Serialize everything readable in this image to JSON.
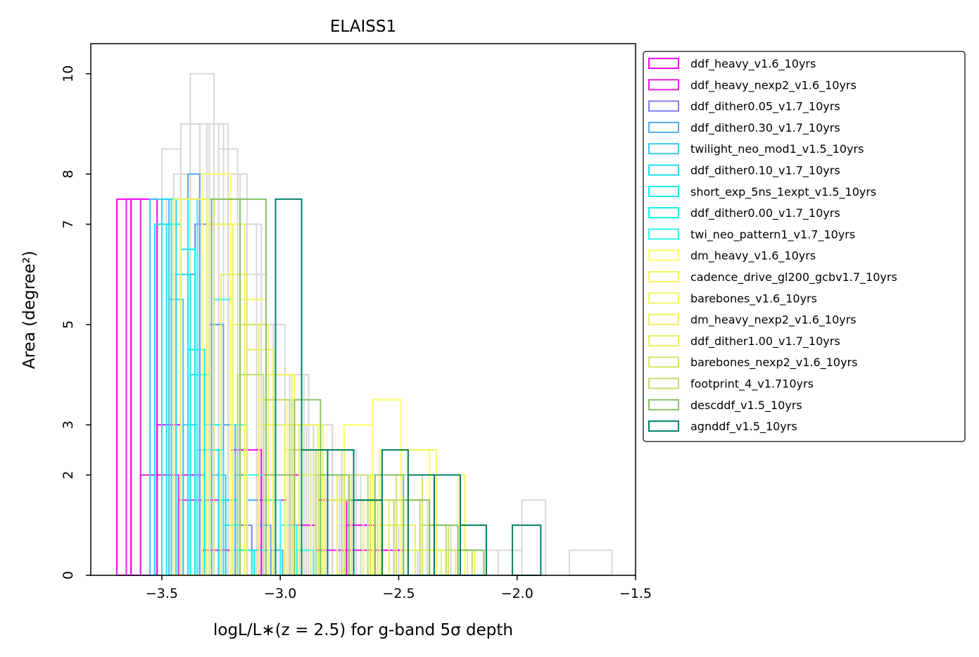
{
  "chart_data": {
    "type": "bar",
    "subtype": "step-histogram",
    "title": "ELAISS1",
    "xlabel": "logL/L∗(z = 2.5) for g-band 5σ depth",
    "ylabel": "Area (degree²)",
    "xlim": [
      -3.8,
      -1.5
    ],
    "ylim": [
      0,
      10.6
    ],
    "xticks": [
      -3.5,
      -3.0,
      -2.5,
      -2.0,
      -1.5
    ],
    "xtick_labels": [
      "−3.5",
      "−3.0",
      "−2.5",
      "−2.0",
      "−1.5"
    ],
    "yticks": [
      0,
      2,
      3,
      5,
      7,
      8,
      10
    ],
    "ytick_labels": [
      "0",
      "2",
      "3",
      "5",
      "7",
      "8",
      "10"
    ],
    "legend_position": "outside right, upper",
    "background_series_color": "#d9d9d9",
    "background_series": [
      {
        "edges": [
          -3.48,
          -3.38,
          -3.28,
          -3.18,
          -3.08,
          -2.98,
          -2.88,
          -2.78,
          -2.68,
          -2.58,
          -2.48,
          -2.38,
          -2.28,
          -2.18,
          -2.08,
          -1.98,
          -1.88,
          -1.78,
          -1.6
        ],
        "values": [
          7.5,
          10,
          8,
          7,
          5,
          4,
          3,
          2.5,
          2,
          2,
          1.5,
          1,
          0.5,
          0.5,
          0.5,
          1.5,
          0,
          0.5
        ]
      },
      {
        "edges": [
          -3.5,
          -3.42,
          -3.34,
          -3.26,
          -3.18,
          -3.1,
          -3.02,
          -2.94,
          -2.86,
          -2.78,
          -2.7,
          -2.62,
          -2.54,
          -2.46,
          -2.38,
          -2.3
        ],
        "values": [
          8.5,
          9,
          9,
          8.5,
          7,
          5,
          4,
          3,
          3,
          2,
          2,
          1.5,
          1,
          0.5,
          0.5
        ]
      },
      {
        "edges": [
          -3.52,
          -3.45,
          -3.38,
          -3.31,
          -3.24,
          -3.17,
          -3.1,
          -3.03,
          -2.96,
          -2.89,
          -2.82,
          -2.75,
          -2.68,
          -2.61,
          -2.54
        ],
        "values": [
          7,
          8,
          9,
          9,
          8,
          6,
          5,
          4,
          3,
          2.5,
          2,
          1,
          1,
          0.5
        ]
      },
      {
        "edges": [
          -3.46,
          -3.38,
          -3.3,
          -3.22,
          -3.14,
          -3.06,
          -2.98,
          -2.9,
          -2.82,
          -2.74,
          -2.66,
          -2.58,
          -2.5,
          -2.42,
          -2.34
        ],
        "values": [
          6,
          8,
          9,
          8,
          6,
          5,
          4,
          3,
          2.5,
          2,
          1.5,
          1,
          0.5,
          0.5
        ]
      }
    ],
    "series": [
      {
        "name": "ddf_heavy_v1.6_10yrs",
        "color": "#ff00ff",
        "edges": [
          -3.69,
          -3.63,
          -3.52,
          -3.42,
          -3.32,
          -3.2,
          -3.08,
          -2.96,
          -2.84,
          -2.72,
          -2.6,
          -2.48
        ],
        "values": [
          7.5,
          7.5,
          3,
          2,
          1.5,
          2.5,
          2,
          2,
          1.5,
          1,
          0.5
        ]
      },
      {
        "name": "ddf_heavy_nexp2_v1.6_10yrs",
        "color": "#e61ee6",
        "edges": [
          -3.65,
          -3.59,
          -3.53,
          -3.43,
          -3.33,
          -3.21,
          -3.09,
          -2.97,
          -2.85,
          -2.73,
          -2.61
        ],
        "values": [
          7.5,
          2,
          2,
          1.5,
          0.5,
          2.5,
          1.5,
          1,
          0.5,
          0.5
        ]
      },
      {
        "name": "ddf_dither0.05_v1.7_10yrs",
        "color": "#7f7fee",
        "edges": [
          -3.42,
          -3.36,
          -3.3,
          -3.24,
          -3.18,
          -3.12
        ],
        "values": [
          6,
          7,
          5,
          3,
          1
        ]
      },
      {
        "name": "ddf_dither0.30_v1.7_10yrs",
        "color": "#55aaee",
        "edges": [
          -3.39,
          -3.34,
          -3.29,
          -3.24,
          -3.19,
          -3.14,
          -3.09,
          -3.04,
          -2.99
        ],
        "values": [
          8,
          7.5,
          5,
          3,
          2,
          1.5,
          1,
          0.5
        ]
      },
      {
        "name": "twilight_neo_mod1_v1.5_10yrs",
        "color": "#3bc8ee",
        "edges": [
          -3.55,
          -3.47,
          -3.41,
          -3.35,
          -3.29,
          -3.23,
          -3.17,
          -3.11,
          -3.05
        ],
        "values": [
          7.5,
          5.5,
          3,
          2.5,
          2,
          1,
          0.5,
          0.5
        ]
      },
      {
        "name": "ddf_dither0.10_v1.7_10yrs",
        "color": "#22dcee",
        "edges": [
          -3.5,
          -3.44,
          -3.38,
          -3.32,
          -3.26,
          -3.2,
          -3.14
        ],
        "values": [
          7.5,
          6,
          4,
          2.5,
          1.5,
          0.5
        ]
      },
      {
        "name": "short_exp_5ns_1expt_v1.5_10yrs",
        "color": "#11e8ee",
        "edges": [
          -3.53,
          -3.46,
          -3.39,
          -3.32,
          -3.25,
          -3.18,
          -3.11
        ],
        "values": [
          7,
          7.5,
          4.5,
          3,
          1.5,
          0.5
        ]
      },
      {
        "name": "ddf_dither0.00_v1.7_10yrs",
        "color": "#11f0f0",
        "edges": [
          -3.48,
          -3.42,
          -3.36,
          -3.3,
          -3.24,
          -3.18,
          -3.12
        ],
        "values": [
          7,
          6.5,
          4,
          2.5,
          1,
          0.5
        ]
      },
      {
        "name": "twi_neo_pattern1_v1.7_10yrs",
        "color": "#33f8ee",
        "edges": [
          -3.35,
          -3.28,
          -3.21,
          -3.14,
          -3.07,
          -3,
          -2.93,
          -2.86
        ],
        "values": [
          7.5,
          5.5,
          3,
          2,
          1.5,
          1,
          0.5
        ]
      },
      {
        "name": "dm_heavy_v1.6_10yrs",
        "color": "#ffff66",
        "edges": [
          -3.33,
          -3.21,
          -3.09,
          -2.97,
          -2.85,
          -2.73,
          -2.61,
          -2.49,
          -2.37,
          -2.25,
          -2.13
        ],
        "values": [
          8,
          5,
          3.5,
          2.5,
          2.5,
          3,
          3.5,
          2.5,
          2,
          1,
          0.5
        ]
      },
      {
        "name": "cadence_drive_gl200_gcbv1.7_10yrs",
        "color": "#f5f560",
        "edges": [
          -3.45,
          -3.3,
          -3.15,
          -3.05,
          -2.94,
          -2.82,
          -2.7,
          -2.58,
          -2.46,
          -2.34,
          -2.22
        ],
        "values": [
          7.5,
          7,
          5,
          4,
          3,
          2,
          1.5,
          2.5,
          2.5,
          2,
          1
        ]
      },
      {
        "name": "barebones_v1.6_10yrs",
        "color": "#f2f566",
        "edges": [
          -3.28,
          -3.17,
          -3.06,
          -2.95,
          -2.84,
          -2.73,
          -2.62,
          -2.51,
          -2.4,
          -2.29,
          -2.18
        ],
        "values": [
          7.5,
          5.5,
          4,
          3,
          2.5,
          2,
          1.5,
          1.5,
          1,
          0.5
        ]
      },
      {
        "name": "dm_heavy_nexp2_v1.6_10yrs",
        "color": "#eef262",
        "edges": [
          -3.42,
          -3.31,
          -3.2,
          -3.09,
          -2.98,
          -2.87,
          -2.76,
          -2.65,
          -2.54,
          -2.43,
          -2.32,
          -2.21
        ],
        "values": [
          7.5,
          7,
          5,
          3,
          2.5,
          2,
          1.5,
          1.5,
          1,
          0.5,
          0.5
        ]
      },
      {
        "name": "ddf_dither1.00_v1.7_10yrs",
        "color": "#e8ee66",
        "edges": [
          -3.25,
          -3.14,
          -3.03,
          -2.92,
          -2.81,
          -2.7,
          -2.59,
          -2.48,
          -2.37,
          -2.26
        ],
        "values": [
          6,
          4.5,
          3,
          2,
          1.5,
          1.5,
          1,
          0.5,
          0.5
        ]
      },
      {
        "name": "barebones_nexp2_v1.6_10yrs",
        "color": "#d8e46c",
        "edges": [
          -3.28,
          -3.17,
          -3.06,
          -2.95,
          -2.84,
          -2.73,
          -2.62,
          -2.51,
          -2.4,
          -2.29
        ],
        "values": [
          7.5,
          5,
          3.5,
          2.5,
          2,
          1.5,
          1.5,
          2,
          1,
          0.5
        ]
      },
      {
        "name": "footprint_4_v1.710yrs",
        "color": "#c2dc72",
        "edges": [
          -3.18,
          -3.07,
          -2.96,
          -2.85,
          -2.74,
          -2.63,
          -2.52,
          -2.41,
          -2.3,
          -2.19
        ],
        "values": [
          4,
          3.5,
          2.5,
          2,
          2,
          1.5,
          1.5,
          1,
          0.5
        ]
      },
      {
        "name": "descddf_v1.5_10yrs",
        "color": "#88c068",
        "edges": [
          -3.29,
          -3.17,
          -3.06,
          -2.94,
          -2.83,
          -2.71,
          -2.6,
          -2.48,
          -2.37,
          -2.25,
          -2.14
        ],
        "values": [
          7.5,
          7.5,
          2,
          3.5,
          2,
          1.5,
          2,
          1.5,
          1,
          0.5
        ]
      },
      {
        "name": "agnddf_v1.5_10yrs",
        "color": "#008064",
        "edges": [
          -3.02,
          -2.91,
          -2.8,
          -2.69,
          -2.57,
          -2.46,
          -2.35,
          -2.24,
          -2.13,
          -2.02,
          -1.9
        ],
        "values": [
          7.5,
          2.5,
          2.5,
          1.5,
          2.5,
          2,
          2,
          1,
          0,
          1
        ]
      }
    ]
  }
}
